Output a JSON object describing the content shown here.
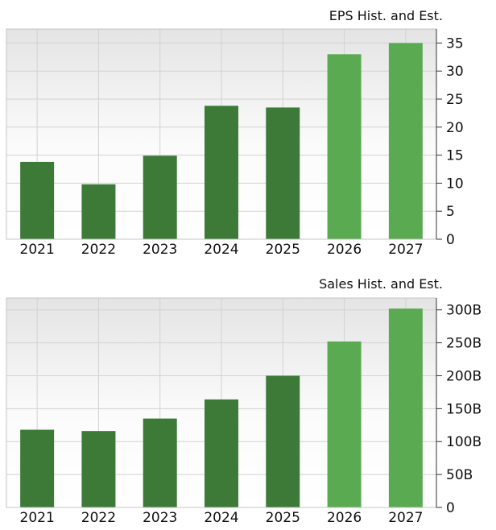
{
  "chart_data": [
    {
      "type": "bar",
      "title": "EPS Hist. and Est.",
      "categories": [
        "2021",
        "2022",
        "2023",
        "2024",
        "2025",
        "2026",
        "2027"
      ],
      "values": [
        13.8,
        9.8,
        14.9,
        23.8,
        23.5,
        33.0,
        35.0
      ],
      "estimate_from_index": 5,
      "ylim": [
        0,
        37.5
      ],
      "yticks": [
        0,
        5,
        10,
        15,
        20,
        25,
        30,
        35
      ],
      "ytick_labels": [
        "0",
        "5",
        "10",
        "15",
        "20",
        "25",
        "30",
        "35"
      ],
      "grid": true,
      "colors": {
        "historical": "#3d7a38",
        "estimate": "#5aaa52"
      }
    },
    {
      "type": "bar",
      "title": "Sales Hist. and Est.",
      "categories": [
        "2021",
        "2022",
        "2023",
        "2024",
        "2025",
        "2026",
        "2027"
      ],
      "values": [
        118,
        116,
        135,
        164,
        200,
        252,
        302
      ],
      "estimate_from_index": 5,
      "ylim": [
        0,
        318
      ],
      "yticks": [
        0,
        50,
        100,
        150,
        200,
        250,
        300
      ],
      "ytick_labels": [
        "0",
        "50B",
        "100B",
        "150B",
        "200B",
        "250B",
        "300B"
      ],
      "grid": true,
      "colors": {
        "historical": "#3d7a38",
        "estimate": "#5aaa52"
      }
    }
  ]
}
